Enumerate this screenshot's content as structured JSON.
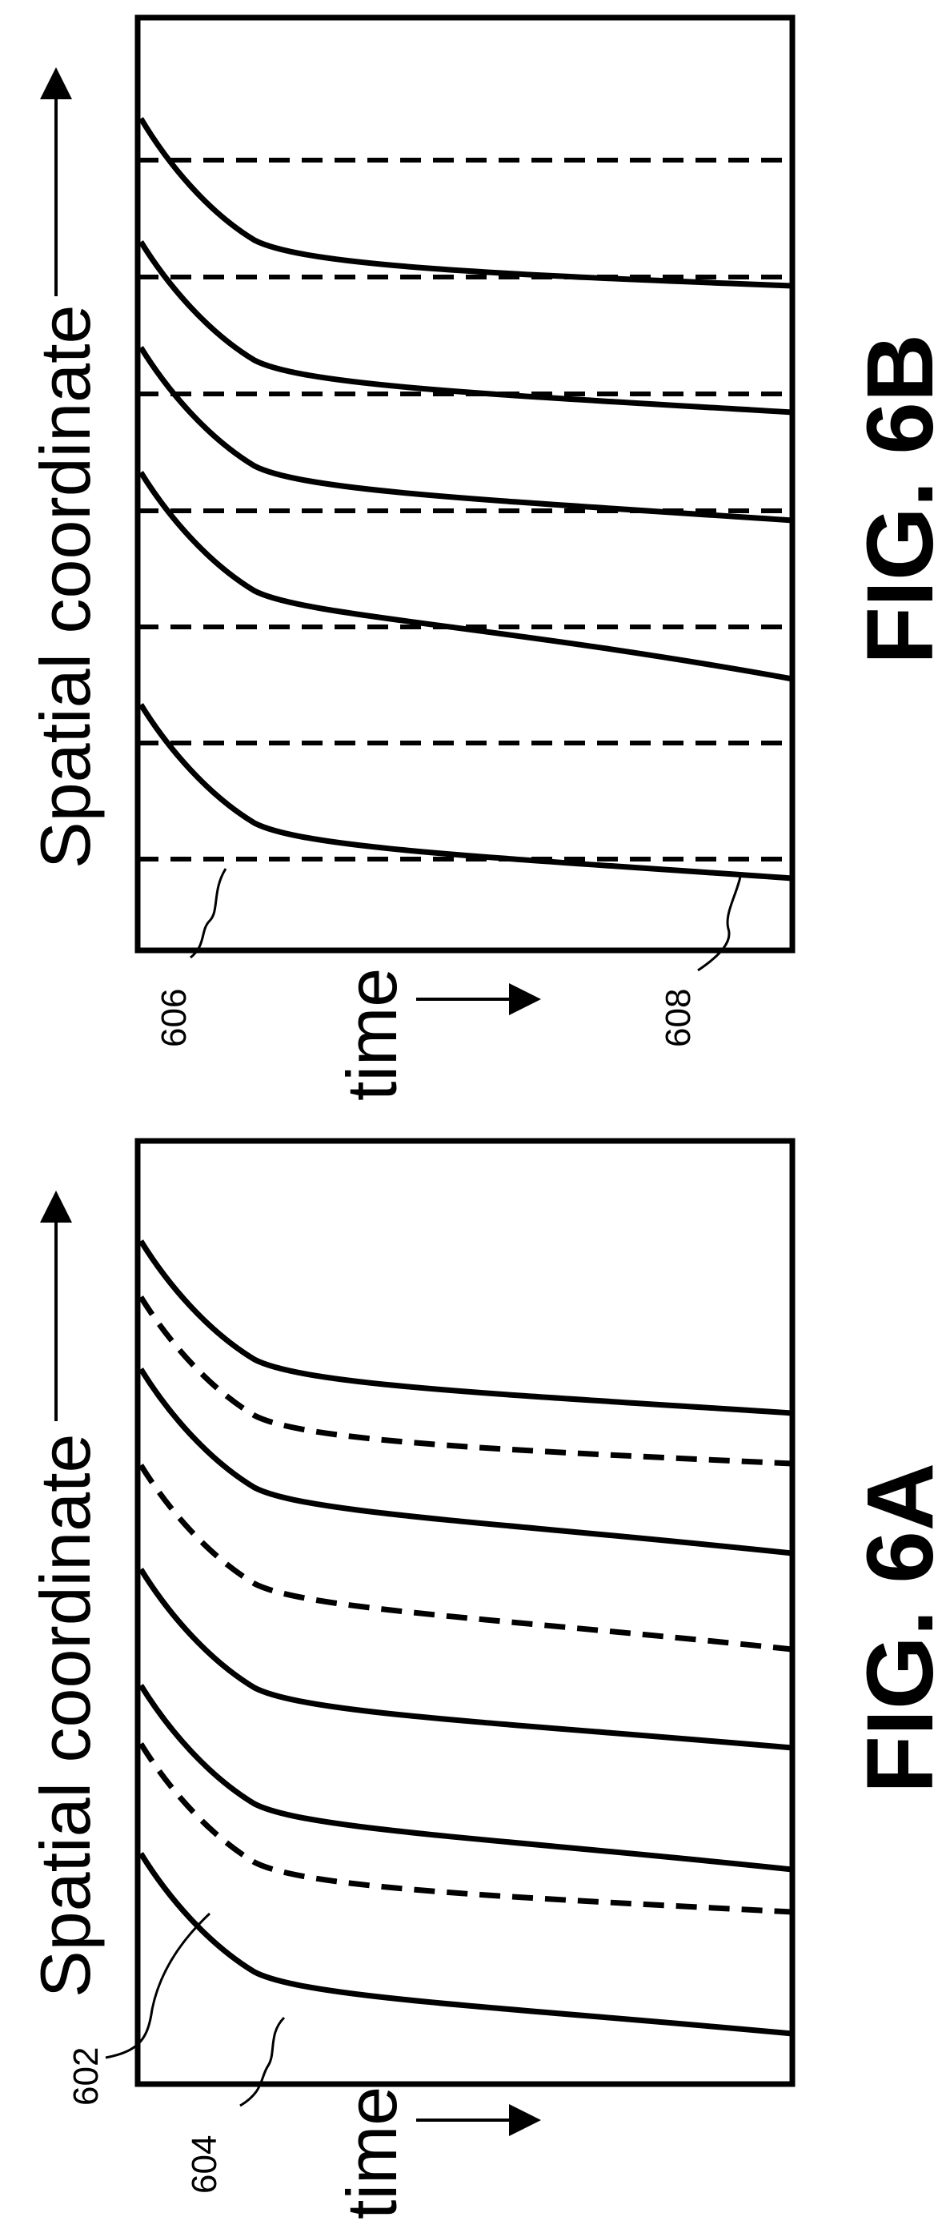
{
  "figures": [
    {
      "id": "fig-6b",
      "caption": "FIG. 6B",
      "spatial_label": "Spatial coordinate",
      "time_label": "time",
      "references": [
        "606",
        "608"
      ],
      "solid_curve_count": 5,
      "dashed_line_count": 7
    },
    {
      "id": "fig-6a",
      "caption": "FIG. 6A",
      "spatial_label": "Spatial coordinate",
      "time_label": "time",
      "references": [
        "602",
        "604"
      ],
      "curve_styles": [
        "solid",
        "dashed",
        "solid",
        "solid",
        "dashed",
        "solid",
        "dashed",
        "solid"
      ]
    }
  ],
  "colors": {
    "ink": "#000000",
    "background": "#ffffff"
  }
}
